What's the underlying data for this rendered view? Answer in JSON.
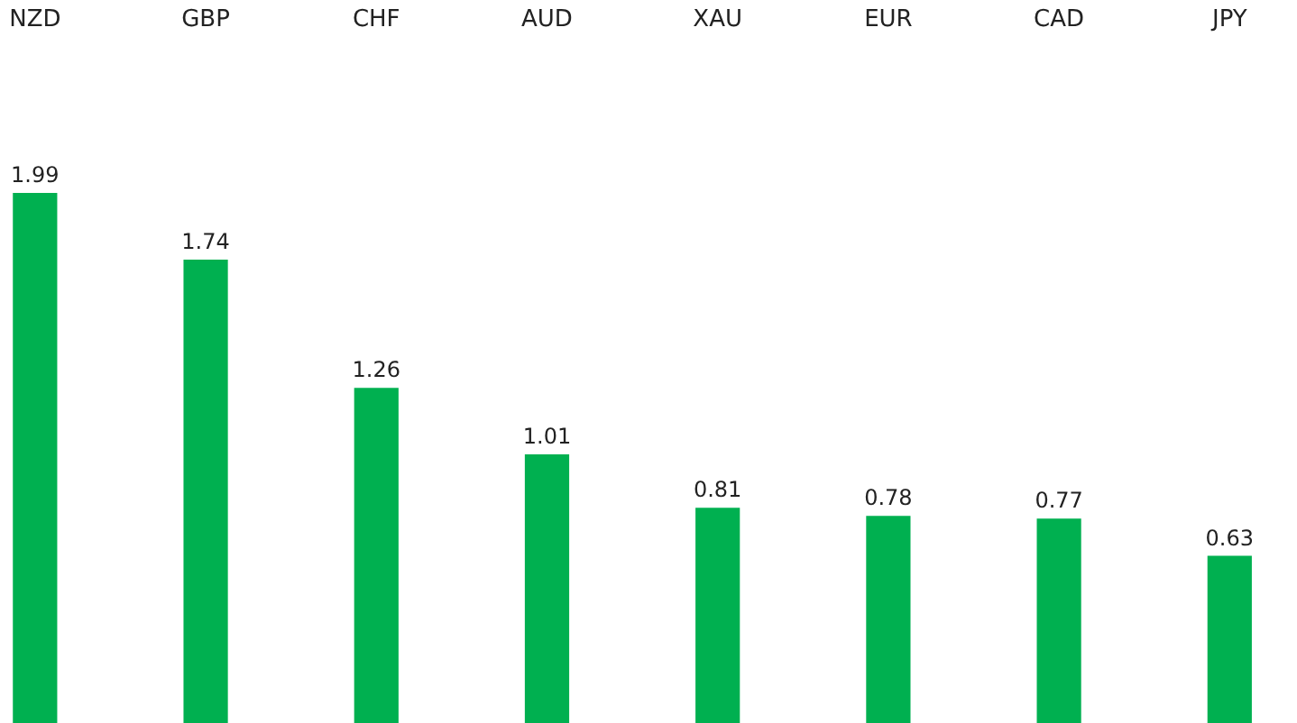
{
  "chart_data": {
    "type": "bar",
    "categories": [
      "NZD",
      "GBP",
      "CHF",
      "AUD",
      "XAU",
      "EUR",
      "CAD",
      "JPY"
    ],
    "values": [
      1.99,
      1.74,
      1.26,
      1.01,
      0.81,
      0.78,
      0.77,
      0.63
    ],
    "color": "#00b050",
    "data_labels": true
  }
}
